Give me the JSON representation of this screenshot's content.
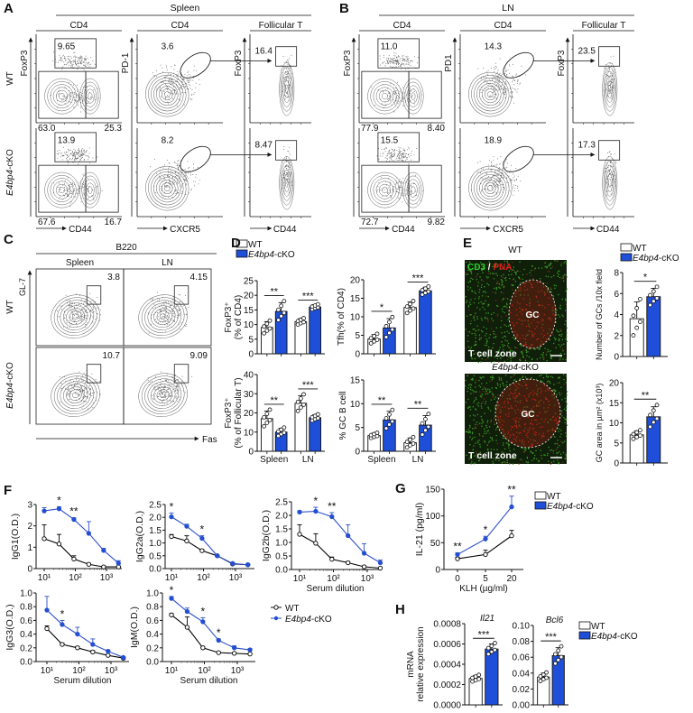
{
  "legends": {
    "wt": "WT",
    "cko": {
      "gene": "E4bp4",
      "suffix": "-cKO"
    }
  },
  "colors": {
    "wt_fill": "#ffffff",
    "cko_fill": "#1f4fd8",
    "wt_line": "#000000",
    "cko_line": "#2c4fc9",
    "cd3": "#2fd12f",
    "pna": "#e0201c"
  },
  "flow": {
    "A": {
      "label": "A",
      "tissue": "Spleen",
      "headers": [
        "CD4",
        "CD4",
        "Follicular T"
      ],
      "y_axes": [
        "FoxP3",
        "PD-1",
        "FoxP3"
      ],
      "x_axes": [
        "CD44",
        "CXCR5",
        "CD44"
      ],
      "row_wt": "WT",
      "row_cko": {
        "gene": "E4bp4",
        "suffix": "-cKO"
      },
      "rows": [
        {
          "treg": "9.65",
          "ll": "63.0",
          "lr": "25.3",
          "pd1": "3.6",
          "fol": "16.4"
        },
        {
          "treg": "13.9",
          "ll": "67.6",
          "lr": "16.7",
          "pd1": "8.2",
          "fol": "8.47"
        }
      ]
    },
    "B": {
      "label": "B",
      "tissue": "LN",
      "headers": [
        "CD4",
        "CD4",
        "Follicular T"
      ],
      "y_axes": [
        "FoxP3",
        "PD1",
        "FoxP3"
      ],
      "x_axes": [
        "CD44",
        "CXCR5",
        "CD44"
      ],
      "rows": [
        {
          "treg": "11.0",
          "ll": "77.9",
          "lr": "8.40",
          "pd1": "14.3",
          "fol": "23.5"
        },
        {
          "treg": "15.5",
          "ll": "72.7",
          "lr": "9.82",
          "pd1": "18.9",
          "fol": "17.3"
        }
      ]
    },
    "C": {
      "label": "C",
      "header": "B220",
      "columns": [
        "Spleen",
        "LN"
      ],
      "y_axis": "GL-7",
      "x_axis": "Fas",
      "row_wt": "WT",
      "row_cko": {
        "gene": "E4bp4",
        "suffix": "-cKO"
      },
      "rows": [
        [
          "3.8",
          "4.15"
        ],
        [
          "10.7",
          "9.09"
        ]
      ]
    }
  },
  "panel_labels": {
    "D": "D",
    "F": "F",
    "G": "G",
    "H": "H"
  },
  "panel_E": {
    "label": "E",
    "wt_title": "WT",
    "cko_title": {
      "gene": "E4bp4",
      "suffix": "-cKO"
    },
    "stain": {
      "cd3": "CD3",
      "sep": " / ",
      "pna": "PNA"
    },
    "gc_label": "GC",
    "zone_label": "T cell zone"
  },
  "chart_data": [
    {
      "id": "D1",
      "type": "bar",
      "categories": [
        "Spleen",
        "LN"
      ],
      "show_categories": false,
      "ylabel": [
        "FoxP3⁺",
        "(% of CD4)"
      ],
      "ylim": [
        0,
        25
      ],
      "yticks": [
        "0",
        "5",
        "10",
        "15",
        "20",
        "25"
      ],
      "series": [
        {
          "means": [
            9,
            11
          ],
          "sd": [
            2,
            1
          ]
        },
        {
          "means": [
            14.5,
            16
          ],
          "sd": [
            3,
            0.8
          ]
        }
      ],
      "significance": [
        "**",
        "***"
      ]
    },
    {
      "id": "D2",
      "type": "bar",
      "categories": [
        "Spleen",
        "LN"
      ],
      "show_categories": false,
      "ylabel": [
        "Tfh(% of CD4)"
      ],
      "ylim": [
        0,
        20
      ],
      "yticks": [
        "0",
        "5",
        "10",
        "15",
        "20"
      ],
      "series": [
        {
          "means": [
            4,
            12.5
          ],
          "sd": [
            1.2,
            1.5
          ]
        },
        {
          "means": [
            7,
            17
          ],
          "sd": [
            2.5,
            1
          ]
        }
      ],
      "significance": [
        "*",
        "***"
      ]
    },
    {
      "id": "D3",
      "type": "bar",
      "categories": [
        "Spleen",
        "LN"
      ],
      "show_categories": true,
      "ylabel": [
        "FoxP3⁺",
        "(% of Follicular T)"
      ],
      "ylim": [
        0,
        40
      ],
      "yticks": [
        "0",
        "10",
        "20",
        "30",
        "40"
      ],
      "series": [
        {
          "means": [
            17,
            25
          ],
          "sd": [
            4,
            4
          ]
        },
        {
          "means": [
            10,
            17.5
          ],
          "sd": [
            2,
            1.5
          ]
        }
      ],
      "significance": [
        "**",
        "***"
      ]
    },
    {
      "id": "D4",
      "type": "bar",
      "categories": [
        "Spleen",
        "LN"
      ],
      "show_categories": true,
      "ylabel": [
        "% GC B cell"
      ],
      "ylim": [
        0,
        15
      ],
      "yticks": [
        "0",
        "5",
        "10",
        "15"
      ],
      "series": [
        {
          "means": [
            3.3,
            1.8
          ],
          "sd": [
            0.5,
            1
          ]
        },
        {
          "means": [
            6.6,
            5.5
          ],
          "sd": [
            1.8,
            2
          ]
        }
      ],
      "significance": [
        "**",
        "**"
      ]
    },
    {
      "id": "E1",
      "type": "bar",
      "categories": [
        ""
      ],
      "show_categories": false,
      "ylabel": [
        "Number of GCs /10x field"
      ],
      "ylim": [
        0,
        8
      ],
      "yticks": [
        "0",
        "2",
        "4",
        "6",
        "8"
      ],
      "series": [
        {
          "means": [
            3.6
          ],
          "sd": [
            1.6
          ]
        },
        {
          "means": [
            5.7
          ],
          "sd": [
            0.8
          ]
        }
      ],
      "significance": [
        "*"
      ]
    },
    {
      "id": "E2",
      "type": "bar",
      "categories": [
        ""
      ],
      "show_categories": false,
      "ylabel": [
        "GC area in µm² (x10³)"
      ],
      "ylim": [
        0,
        20
      ],
      "yticks": [
        "0",
        "5",
        "10",
        "15",
        "20"
      ],
      "series": [
        {
          "means": [
            7
          ],
          "sd": [
            1
          ]
        },
        {
          "means": [
            11.5
          ],
          "sd": [
            2.5
          ]
        }
      ],
      "significance": [
        "**"
      ]
    },
    {
      "id": "F1",
      "type": "line",
      "x": [
        10,
        30,
        90,
        270,
        810,
        2430
      ],
      "xscale": "log",
      "xticks": [
        "10¹",
        "10²",
        "10³"
      ],
      "xlabel": "",
      "ylabel": "IgG1(O.D.)",
      "ylim": [
        0,
        3
      ],
      "yticks": [
        "0",
        "1",
        "2",
        "3"
      ],
      "series": [
        {
          "y": [
            1.4,
            1.15,
            0.45,
            0.2,
            0.08,
            0.08
          ],
          "err": [
            0.65,
            0.45,
            0.15,
            0.05,
            0.03,
            0.03
          ]
        },
        {
          "y": [
            2.7,
            2.8,
            2.3,
            1.65,
            0.85,
            0.25
          ],
          "err": [
            0.15,
            0.1,
            0.08,
            0.55,
            0.1,
            0.12
          ]
        }
      ],
      "significance": [
        {
          "x": 30,
          "label": "*"
        },
        {
          "x": 90,
          "label": "**"
        }
      ]
    },
    {
      "id": "F2",
      "type": "line",
      "x": [
        10,
        30,
        90,
        270,
        810,
        2430
      ],
      "xscale": "log",
      "xticks": [
        "10¹",
        "10²",
        "10³"
      ],
      "xlabel": "",
      "ylabel": "IgG2a(O.D.)",
      "ylim": [
        0,
        2.5
      ],
      "yticks": [
        "0.0",
        "0.5",
        "1.0",
        "1.5",
        "2.0",
        "2.5"
      ],
      "series": [
        {
          "y": [
            1.25,
            1.08,
            0.7,
            0.5,
            0.18,
            0.15
          ],
          "err": [
            0.08,
            0.2,
            0.05,
            0.03,
            0.03,
            0.02
          ]
        },
        {
          "y": [
            2.02,
            1.65,
            1.18,
            0.5,
            0.2,
            0.15
          ],
          "err": [
            0.15,
            0.08,
            0.1,
            0.03,
            0.05,
            0.03
          ]
        }
      ],
      "significance": [
        {
          "x": 10,
          "label": "*"
        },
        {
          "x": 90,
          "label": "*"
        }
      ]
    },
    {
      "id": "F3",
      "type": "line",
      "x": [
        10,
        30,
        90,
        270,
        810,
        2430
      ],
      "xscale": "log",
      "xticks": [
        "10¹",
        "10²",
        "10³"
      ],
      "xlabel": "Serum dilution",
      "ylabel": "IgG2b(O.D.)",
      "ylim": [
        0,
        2.5
      ],
      "yticks": [
        "0.0",
        "0.5",
        "1.0",
        "1.5",
        "2.0",
        "2.5"
      ],
      "series": [
        {
          "y": [
            1.3,
            0.97,
            0.38,
            0.25,
            0.1,
            0.05
          ],
          "err": [
            0.35,
            0.35,
            0.08,
            0.04,
            0.03,
            0.02
          ]
        },
        {
          "y": [
            2.12,
            2.15,
            1.95,
            1.25,
            0.6,
            0.25
          ],
          "err": [
            0.05,
            0.15,
            0.15,
            0.4,
            0.35,
            0.1
          ]
        }
      ],
      "significance": [
        {
          "x": 30,
          "label": "*"
        },
        {
          "x": 90,
          "label": "**"
        }
      ]
    },
    {
      "id": "F4",
      "type": "line",
      "x": [
        10,
        30,
        90,
        270,
        810,
        2430
      ],
      "xscale": "log",
      "xticks": [
        "10¹",
        "10²",
        "10³"
      ],
      "xlabel": "Serum dilution",
      "ylabel": "IgG3(O.D.)",
      "ylim": [
        0,
        1
      ],
      "yticks": [
        "0.0",
        "0.2",
        "0.4",
        "0.6",
        "0.8",
        "1.0"
      ],
      "series": [
        {
          "y": [
            0.48,
            0.25,
            0.2,
            0.14,
            0.09,
            0.05
          ],
          "err": [
            0.04,
            0.02,
            0.02,
            0.02,
            0.01,
            0.01
          ]
        },
        {
          "y": [
            0.75,
            0.54,
            0.4,
            0.25,
            0.15,
            0.06
          ],
          "err": [
            0.2,
            0.06,
            0.1,
            0.08,
            0.02,
            0.01
          ]
        }
      ],
      "significance": [
        {
          "x": 30,
          "label": "*"
        }
      ]
    },
    {
      "id": "F5",
      "type": "line",
      "x": [
        10,
        30,
        90,
        270,
        810,
        2430
      ],
      "xscale": "log",
      "xticks": [
        "10¹",
        "10²",
        "10³"
      ],
      "xlabel": "Serum dilution",
      "ylabel": "IgM(O.D.)",
      "ylim": [
        0,
        1
      ],
      "yticks": [
        "0.0",
        "0.2",
        "0.4",
        "0.6",
        "0.8",
        "1.0"
      ],
      "series": [
        {
          "y": [
            0.68,
            0.5,
            0.2,
            0.13,
            0.12,
            0.11
          ],
          "err": [
            0.02,
            0.15,
            0.02,
            0.01,
            0.01,
            0.01
          ]
        },
        {
          "y": [
            0.92,
            0.73,
            0.58,
            0.31,
            0.2,
            0.17
          ],
          "err": [
            0.03,
            0.05,
            0.06,
            0.02,
            0.03,
            0.02
          ]
        }
      ],
      "significance": [
        {
          "x": 10,
          "label": "*"
        },
        {
          "x": 90,
          "label": "*"
        },
        {
          "x": 270,
          "label": "*"
        }
      ]
    },
    {
      "id": "G",
      "type": "line",
      "x": [
        0,
        5,
        20
      ],
      "xscale": "category",
      "xticks": [
        "0",
        "5",
        "20"
      ],
      "xlabel": "KLH (µg/ml)",
      "ylabel": "IL-21 (pg/ml)",
      "ylim": [
        0,
        150
      ],
      "yticks": [
        "0",
        "50",
        "100",
        "150"
      ],
      "series": [
        {
          "y": [
            20,
            28,
            63
          ],
          "err": [
            3,
            8,
            10
          ]
        },
        {
          "y": [
            28,
            57,
            117
          ],
          "err": [
            3,
            5,
            20
          ]
        }
      ],
      "significance": [
        {
          "x": 0,
          "label": "**"
        },
        {
          "x": 5,
          "label": "*"
        },
        {
          "x": 20,
          "label": "**"
        }
      ]
    },
    {
      "id": "H1",
      "type": "bar",
      "title": "Il21",
      "categories": [
        ""
      ],
      "show_categories": false,
      "ylabel": [
        "mRNA",
        "relative expression"
      ],
      "ylim": [
        0,
        0.0008
      ],
      "yticks": [
        "0.0000",
        "0.0002",
        "0.0004",
        "0.0006",
        "0.0008"
      ],
      "series": [
        {
          "means": [
            0.00026
          ],
          "sd": [
            3e-05
          ]
        },
        {
          "means": [
            0.00055
          ],
          "sd": [
            5e-05
          ]
        }
      ],
      "significance": [
        "***"
      ]
    },
    {
      "id": "H2",
      "type": "bar",
      "title": "Bcl6",
      "categories": [
        ""
      ],
      "show_categories": false,
      "ylabel": [],
      "ylim": [
        0,
        0.1
      ],
      "yticks": [
        "0.00",
        "0.02",
        "0.04",
        "0.06",
        "0.08",
        "0.10"
      ],
      "series": [
        {
          "means": [
            0.035
          ],
          "sd": [
            0.005
          ]
        },
        {
          "means": [
            0.062
          ],
          "sd": [
            0.01
          ]
        }
      ],
      "significance": [
        "***"
      ]
    }
  ]
}
